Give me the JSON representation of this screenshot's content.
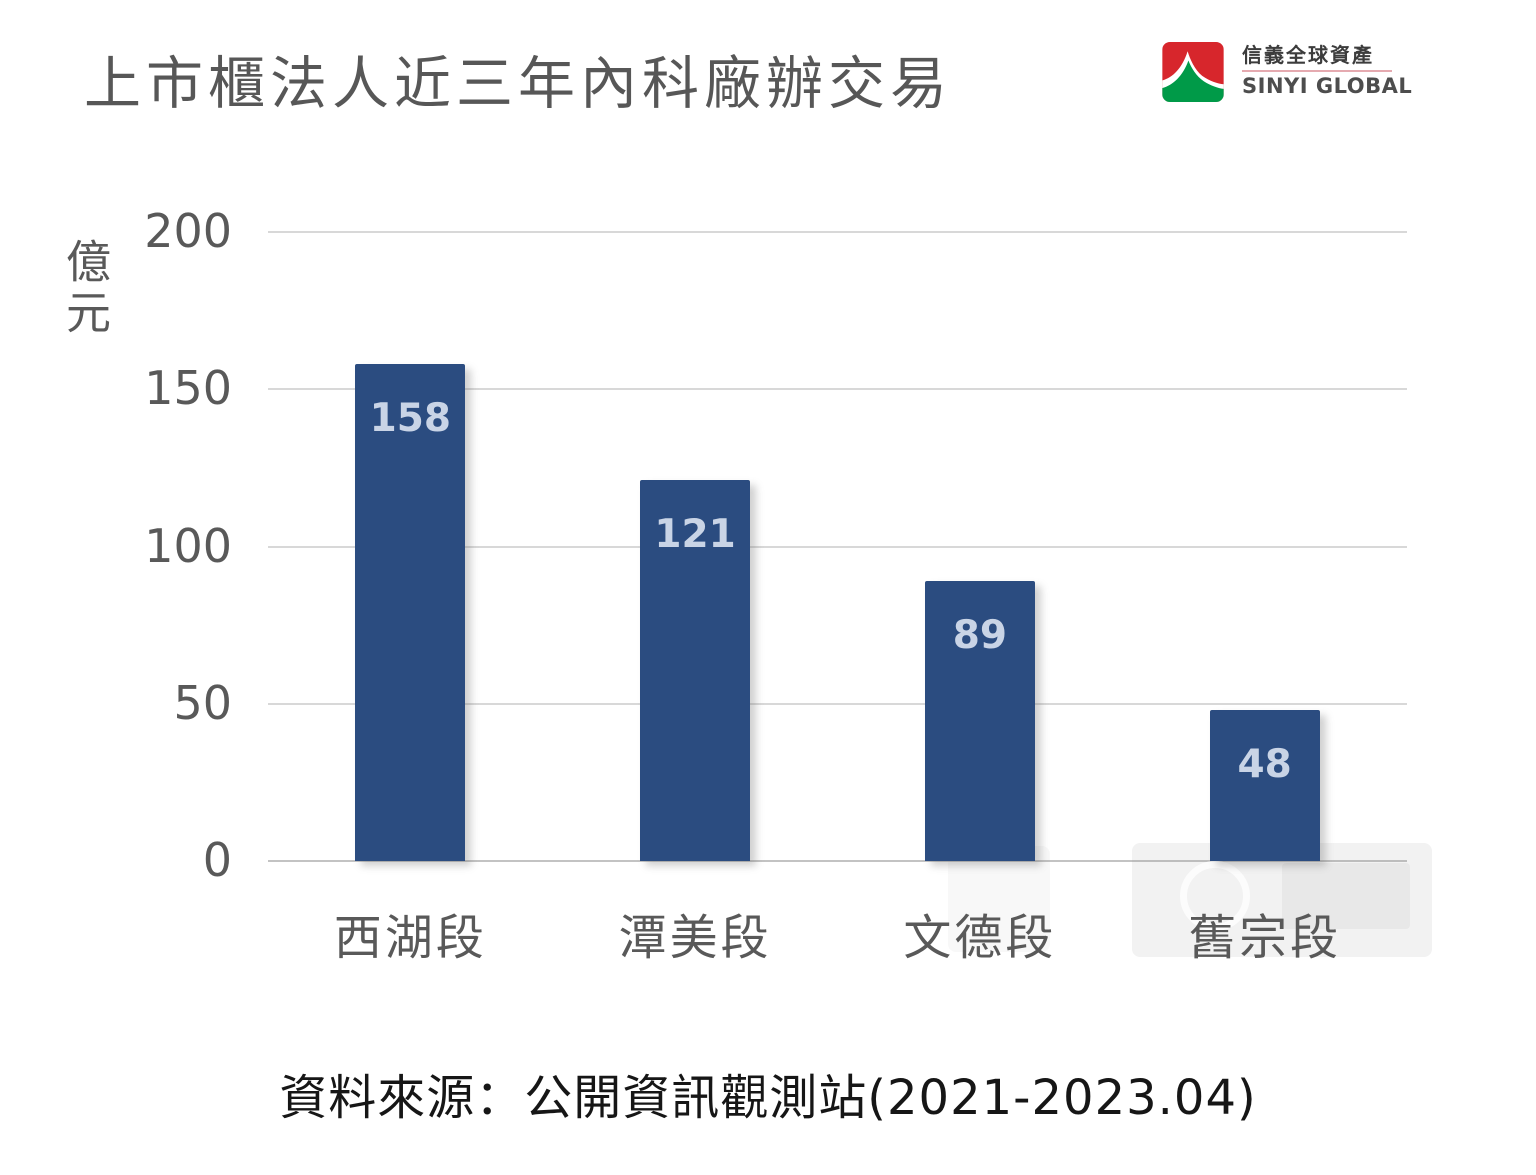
{
  "title": "上市櫃法人近三年內科廠辦交易",
  "logo": {
    "name_zh": "信義全球資產",
    "name_en": "SINYI GLOBAL",
    "icon_red": "#d7262c",
    "icon_green": "#009a48"
  },
  "chart_data": {
    "type": "bar",
    "title": "上市櫃法人近三年內科廠辦交易",
    "categories": [
      "西湖段",
      "潭美段",
      "文德段",
      "舊宗段"
    ],
    "values": [
      158,
      121,
      89,
      48
    ],
    "xlabel": "",
    "ylabel": "億元",
    "ylim": [
      0,
      200
    ],
    "yticks": [
      0,
      50,
      100,
      150,
      200
    ],
    "grid": true,
    "legend_position": "none",
    "bar_color": "#2b4c80",
    "value_label_color": "#c9d4e6"
  },
  "footer": {
    "source": "資料來源：公開資訊觀測站(2021-2023.04)"
  }
}
